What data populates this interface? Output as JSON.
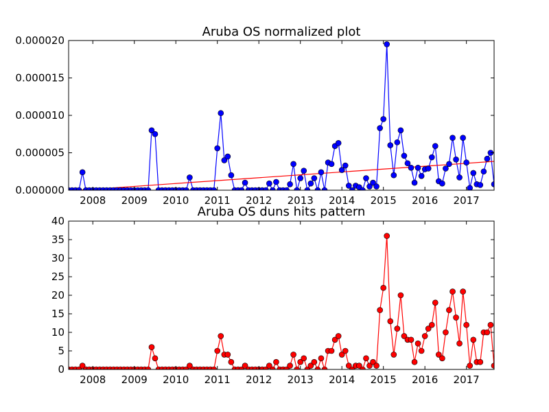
{
  "chart_data": [
    {
      "type": "line",
      "title": "Aruba OS normalized plot",
      "color": "#0000ff",
      "x": [
        2007.417,
        2007.5,
        2007.583,
        2007.667,
        2007.75,
        2007.833,
        2007.917,
        2008,
        2008.083,
        2008.167,
        2008.25,
        2008.333,
        2008.417,
        2008.5,
        2008.583,
        2008.667,
        2008.75,
        2008.833,
        2008.917,
        2009,
        2009.083,
        2009.167,
        2009.25,
        2009.333,
        2009.417,
        2009.5,
        2009.583,
        2009.667,
        2009.75,
        2009.833,
        2009.917,
        2010,
        2010.083,
        2010.167,
        2010.25,
        2010.333,
        2010.417,
        2010.5,
        2010.583,
        2010.667,
        2010.75,
        2010.833,
        2010.917,
        2011,
        2011.083,
        2011.167,
        2011.25,
        2011.333,
        2011.417,
        2011.5,
        2011.583,
        2011.667,
        2011.75,
        2011.833,
        2011.917,
        2012,
        2012.083,
        2012.167,
        2012.25,
        2012.333,
        2012.417,
        2012.5,
        2012.583,
        2012.667,
        2012.75,
        2012.833,
        2012.917,
        2013,
        2013.083,
        2013.167,
        2013.25,
        2013.333,
        2013.417,
        2013.5,
        2013.583,
        2013.667,
        2013.75,
        2013.833,
        2013.917,
        2014,
        2014.083,
        2014.167,
        2014.25,
        2014.333,
        2014.417,
        2014.5,
        2014.583,
        2014.667,
        2014.75,
        2014.833,
        2014.917,
        2015,
        2015.083,
        2015.167,
        2015.25,
        2015.333,
        2015.417,
        2015.5,
        2015.583,
        2015.667,
        2015.75,
        2015.833,
        2015.917,
        2016,
        2016.083,
        2016.167,
        2016.25,
        2016.333,
        2016.417,
        2016.5,
        2016.583,
        2016.667,
        2016.75,
        2016.833,
        2016.917,
        2017,
        2017.083,
        2017.167,
        2017.25,
        2017.333,
        2017.417,
        2017.5,
        2017.583,
        2017.667
      ],
      "values": [
        0,
        0,
        0,
        0,
        2.4e-06,
        0,
        0,
        0,
        0,
        0,
        0,
        0,
        0,
        0,
        0,
        0,
        0,
        0,
        0,
        0,
        0,
        0,
        0,
        0,
        8e-06,
        7.5e-06,
        0,
        0,
        0,
        0,
        0,
        0,
        0,
        0,
        0,
        1.7e-06,
        0,
        0,
        0,
        0,
        0,
        0,
        0,
        5.6e-06,
        1.03e-05,
        4e-06,
        4.5e-06,
        2e-06,
        0,
        0,
        0,
        1e-06,
        0,
        0,
        0,
        0,
        0,
        0,
        9e-07,
        0,
        1.1e-06,
        0,
        0,
        0,
        8e-07,
        3.5e-06,
        0,
        1.6e-06,
        2.6e-06,
        0,
        9e-07,
        1.6e-06,
        0,
        2.4e-06,
        0,
        3.7e-06,
        3.5e-06,
        5.9e-06,
        6.3e-06,
        2.7e-06,
        3.3e-06,
        6e-07,
        0,
        6e-07,
        4e-07,
        0,
        1.6e-06,
        5e-07,
        1e-06,
        5e-07,
        8.3e-06,
        9.5e-06,
        1.95e-05,
        6e-06,
        2e-06,
        6.4e-06,
        8e-06,
        4.6e-06,
        3.6e-06,
        3e-06,
        1e-06,
        3e-06,
        1.9e-06,
        2.8e-06,
        2.9e-06,
        4.4e-06,
        5.9e-06,
        1.2e-06,
        9e-07,
        2.9e-06,
        3.5e-06,
        7e-06,
        4.1e-06,
        1.7e-06,
        7e-06,
        3.7e-06,
        3e-07,
        2.3e-06,
        8e-07,
        7e-07,
        2.5e-06,
        4.2e-06,
        5e-06,
        8e-07
      ],
      "trend": {
        "x": [
          2007.417,
          2017.667
        ],
        "values": [
          -1e-07,
          3.85e-06
        ],
        "color": "#ff0000"
      },
      "xlim": [
        2007.417,
        2017.667
      ],
      "xticks": [
        2008,
        2009,
        2010,
        2011,
        2012,
        2013,
        2014,
        2015,
        2016,
        2017
      ],
      "ylim": [
        0,
        2e-05
      ],
      "yticks": [
        {
          "value": 0,
          "label": "0.000000"
        },
        {
          "value": 5e-06,
          "label": "0.000005"
        },
        {
          "value": 1e-05,
          "label": "0.000010"
        },
        {
          "value": 1.5e-05,
          "label": "0.000015"
        },
        {
          "value": 2e-05,
          "label": "0.000020"
        }
      ]
    },
    {
      "type": "line",
      "title": "Aruba OS duns hits pattern",
      "color": "#ff0000",
      "x": [
        2007.417,
        2007.5,
        2007.583,
        2007.667,
        2007.75,
        2007.833,
        2007.917,
        2008,
        2008.083,
        2008.167,
        2008.25,
        2008.333,
        2008.417,
        2008.5,
        2008.583,
        2008.667,
        2008.75,
        2008.833,
        2008.917,
        2009,
        2009.083,
        2009.167,
        2009.25,
        2009.333,
        2009.417,
        2009.5,
        2009.583,
        2009.667,
        2009.75,
        2009.833,
        2009.917,
        2010,
        2010.083,
        2010.167,
        2010.25,
        2010.333,
        2010.417,
        2010.5,
        2010.583,
        2010.667,
        2010.75,
        2010.833,
        2010.917,
        2011,
        2011.083,
        2011.167,
        2011.25,
        2011.333,
        2011.417,
        2011.5,
        2011.583,
        2011.667,
        2011.75,
        2011.833,
        2011.917,
        2012,
        2012.083,
        2012.167,
        2012.25,
        2012.333,
        2012.417,
        2012.5,
        2012.583,
        2012.667,
        2012.75,
        2012.833,
        2012.917,
        2013,
        2013.083,
        2013.167,
        2013.25,
        2013.333,
        2013.417,
        2013.5,
        2013.583,
        2013.667,
        2013.75,
        2013.833,
        2013.917,
        2014,
        2014.083,
        2014.167,
        2014.25,
        2014.333,
        2014.417,
        2014.5,
        2014.583,
        2014.667,
        2014.75,
        2014.833,
        2014.917,
        2015,
        2015.083,
        2015.167,
        2015.25,
        2015.333,
        2015.417,
        2015.5,
        2015.583,
        2015.667,
        2015.75,
        2015.833,
        2015.917,
        2016,
        2016.083,
        2016.167,
        2016.25,
        2016.333,
        2016.417,
        2016.5,
        2016.583,
        2016.667,
        2016.75,
        2016.833,
        2016.917,
        2017,
        2017.083,
        2017.167,
        2017.25,
        2017.333,
        2017.417,
        2017.5,
        2017.583,
        2017.667
      ],
      "values": [
        0,
        0,
        0,
        0,
        1,
        0,
        0,
        0,
        0,
        0,
        0,
        0,
        0,
        0,
        0,
        0,
        0,
        0,
        0,
        0,
        0,
        0,
        0,
        0,
        6,
        3,
        0,
        0,
        0,
        0,
        0,
        0,
        0,
        0,
        0,
        1,
        0,
        0,
        0,
        0,
        0,
        0,
        0,
        5,
        9,
        4,
        4,
        2,
        0,
        0,
        0,
        1,
        0,
        0,
        0,
        0,
        0,
        0,
        1,
        0,
        2,
        0,
        0,
        0,
        1,
        4,
        0,
        2,
        3,
        0,
        1,
        2,
        0,
        3,
        0,
        5,
        5,
        8,
        9,
        4,
        5,
        1,
        0,
        1,
        1,
        0,
        3,
        1,
        2,
        1,
        16,
        22,
        36,
        13,
        4,
        11,
        20,
        9,
        8,
        8,
        2,
        7,
        5,
        9,
        11,
        12,
        18,
        4,
        3,
        10,
        16,
        21,
        14,
        7,
        21,
        12,
        1,
        8,
        2,
        2,
        10,
        10,
        12,
        1
      ],
      "xlim": [
        2007.417,
        2017.667
      ],
      "xticks": [
        2008,
        2009,
        2010,
        2011,
        2012,
        2013,
        2014,
        2015,
        2016,
        2017
      ],
      "ylim": [
        0,
        40
      ],
      "yticks": [
        0,
        5,
        10,
        15,
        20,
        25,
        30,
        35,
        40
      ]
    }
  ]
}
